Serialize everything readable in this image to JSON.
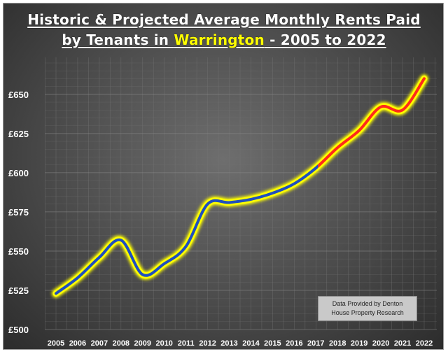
{
  "chart_data": {
    "type": "line",
    "title_part1": "Historic & Projected Average Monthly Rents Paid",
    "title_part2_prefix": "by Tenants in ",
    "title_place": "Warrington",
    "title_part2_suffix": " - 2005 to 2022",
    "x": [
      "2005",
      "2006",
      "2007",
      "2008",
      "2009",
      "2010",
      "2011",
      "2012",
      "2013",
      "2014",
      "2015",
      "2016",
      "2017",
      "2018",
      "2019",
      "2020",
      "2021",
      "2022"
    ],
    "y": [
      523,
      533,
      546,
      557,
      535,
      542,
      553,
      580,
      581,
      583,
      587,
      593,
      603,
      616,
      627,
      642,
      640,
      660
    ],
    "y_ticks": [
      "£500",
      "£525",
      "£550",
      "£575",
      "£600",
      "£625",
      "£650"
    ],
    "y_tick_values": [
      500,
      525,
      550,
      575,
      600,
      625,
      650
    ],
    "ylim": [
      500,
      670
    ],
    "historic_color": "#1f4fbf",
    "projected_color": "#ff2a1a",
    "glow_color": "#ffff00",
    "projection_start_value": 2017.1,
    "grid": true,
    "annotation": "Data Provided by Denton\nHouse Property Research"
  }
}
